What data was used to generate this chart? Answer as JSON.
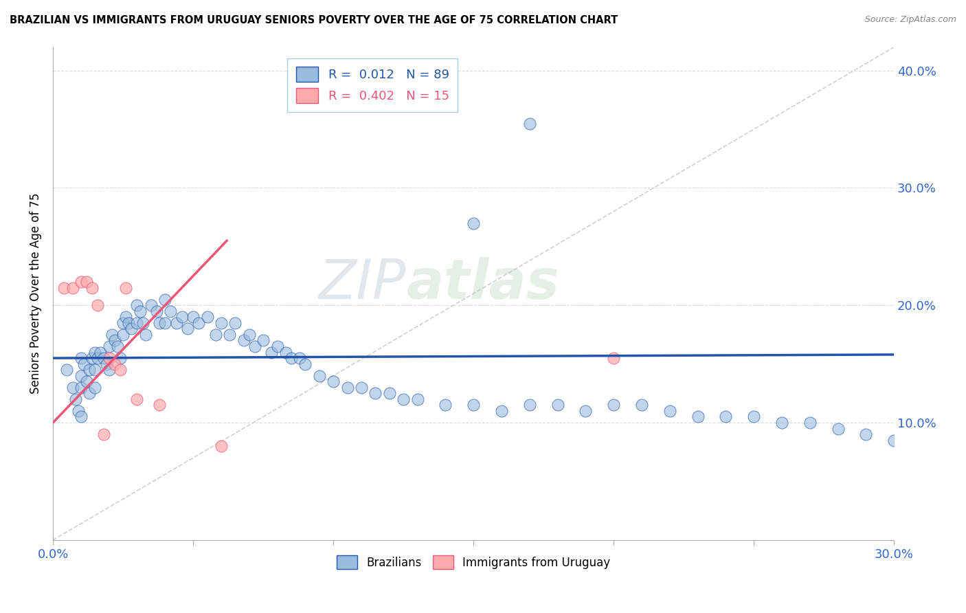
{
  "title": "BRAZILIAN VS IMMIGRANTS FROM URUGUAY SENIORS POVERTY OVER THE AGE OF 75 CORRELATION CHART",
  "source": "Source: ZipAtlas.com",
  "ylabel": "Seniors Poverty Over the Age of 75",
  "xlim": [
    0.0,
    0.3
  ],
  "ylim": [
    0.0,
    0.42
  ],
  "xticks": [
    0.0,
    0.05,
    0.1,
    0.15,
    0.2,
    0.25,
    0.3
  ],
  "yticks": [
    0.1,
    0.2,
    0.3,
    0.4
  ],
  "blue_color": "#99BBDD",
  "pink_color": "#FFAAAA",
  "blue_line_color": "#2255AA",
  "pink_line_color": "#EE5577",
  "watermark_zip": "ZIP",
  "watermark_atlas": "atlas",
  "brazilians_x": [
    0.005,
    0.007,
    0.008,
    0.009,
    0.01,
    0.01,
    0.01,
    0.01,
    0.011,
    0.012,
    0.013,
    0.013,
    0.014,
    0.015,
    0.015,
    0.015,
    0.016,
    0.017,
    0.018,
    0.019,
    0.02,
    0.02,
    0.021,
    0.022,
    0.023,
    0.024,
    0.025,
    0.025,
    0.026,
    0.027,
    0.028,
    0.03,
    0.03,
    0.031,
    0.032,
    0.033,
    0.035,
    0.037,
    0.038,
    0.04,
    0.04,
    0.042,
    0.044,
    0.046,
    0.048,
    0.05,
    0.052,
    0.055,
    0.058,
    0.06,
    0.063,
    0.065,
    0.068,
    0.07,
    0.072,
    0.075,
    0.078,
    0.08,
    0.083,
    0.085,
    0.088,
    0.09,
    0.095,
    0.1,
    0.105,
    0.11,
    0.115,
    0.12,
    0.125,
    0.13,
    0.14,
    0.15,
    0.16,
    0.17,
    0.18,
    0.19,
    0.2,
    0.21,
    0.22,
    0.23,
    0.24,
    0.25,
    0.26,
    0.27,
    0.28,
    0.29,
    0.3,
    0.15,
    0.17
  ],
  "brazilians_y": [
    0.145,
    0.13,
    0.12,
    0.11,
    0.155,
    0.14,
    0.13,
    0.105,
    0.15,
    0.135,
    0.145,
    0.125,
    0.155,
    0.16,
    0.145,
    0.13,
    0.155,
    0.16,
    0.155,
    0.15,
    0.165,
    0.145,
    0.175,
    0.17,
    0.165,
    0.155,
    0.185,
    0.175,
    0.19,
    0.185,
    0.18,
    0.2,
    0.185,
    0.195,
    0.185,
    0.175,
    0.2,
    0.195,
    0.185,
    0.205,
    0.185,
    0.195,
    0.185,
    0.19,
    0.18,
    0.19,
    0.185,
    0.19,
    0.175,
    0.185,
    0.175,
    0.185,
    0.17,
    0.175,
    0.165,
    0.17,
    0.16,
    0.165,
    0.16,
    0.155,
    0.155,
    0.15,
    0.14,
    0.135,
    0.13,
    0.13,
    0.125,
    0.125,
    0.12,
    0.12,
    0.115,
    0.115,
    0.11,
    0.115,
    0.115,
    0.11,
    0.115,
    0.115,
    0.11,
    0.105,
    0.105,
    0.105,
    0.1,
    0.1,
    0.095,
    0.09,
    0.085,
    0.27,
    0.355
  ],
  "uruguay_x": [
    0.004,
    0.007,
    0.01,
    0.012,
    0.014,
    0.016,
    0.018,
    0.02,
    0.022,
    0.024,
    0.026,
    0.03,
    0.038,
    0.06,
    0.2
  ],
  "uruguay_y": [
    0.215,
    0.215,
    0.22,
    0.22,
    0.215,
    0.2,
    0.09,
    0.155,
    0.15,
    0.145,
    0.215,
    0.12,
    0.115,
    0.08,
    0.155
  ],
  "blue_trend_x": [
    0.0,
    0.3
  ],
  "blue_trend_y": [
    0.155,
    0.158
  ],
  "pink_trend_x": [
    0.0,
    0.062
  ],
  "pink_trend_y": [
    0.1,
    0.255
  ]
}
